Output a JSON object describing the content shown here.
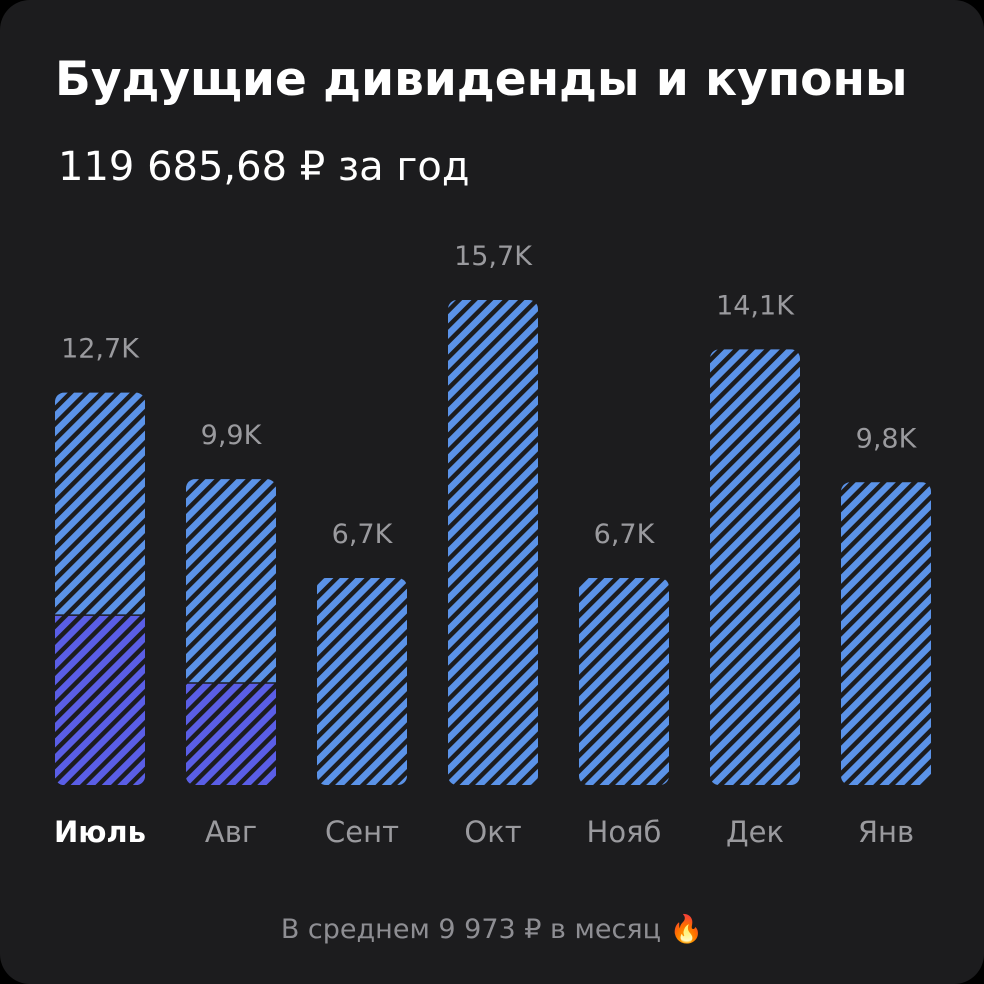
{
  "chart_data": {
    "type": "bar",
    "title": "Будущие дивиденды и купоны",
    "subtitle": "119 685,68 ₽ за год",
    "categories": [
      "Июль",
      "Авг",
      "Сент",
      "Окт",
      "Нояб",
      "Дек",
      "Янв"
    ],
    "selected": 0,
    "values": [
      12.7,
      9.9,
      6.7,
      15.7,
      6.7,
      14.1,
      9.8
    ],
    "value_labels": [
      "12,7K",
      "9,9K",
      "6,7K",
      "15,7K",
      "6,7K",
      "14,1K",
      "9,8K"
    ],
    "color": "#5b93e8",
    "overlay": {
      "color": "#5a5ee6",
      "values": [
        5.5,
        3.3,
        null,
        null,
        null,
        null,
        null
      ]
    },
    "footer": "В среднем 9 973 ₽ в месяц 🔥"
  }
}
